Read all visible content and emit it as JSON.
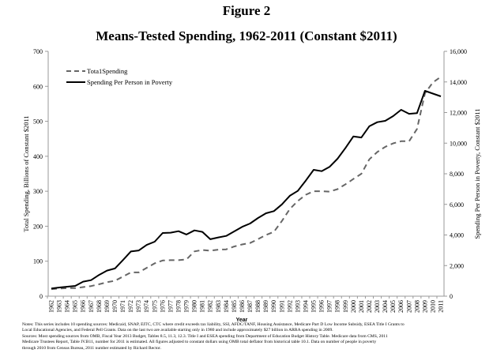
{
  "figure_label": "Figure 2",
  "chart_data": {
    "type": "line",
    "title": "Means-Tested Spending, 1962-2011 (Constant $2011)",
    "xlabel": "Year",
    "ylabel": "Total Spending, Billions of Constant $2011",
    "y2label": "Spending Per Person in Poverty, Constant $2011",
    "ylim": [
      0,
      700
    ],
    "y2lim": [
      0,
      16000
    ],
    "yticks": [
      "0",
      "100",
      "200",
      "300",
      "400",
      "500",
      "600",
      "700"
    ],
    "y2ticks": [
      "0",
      "2,000",
      "4,000",
      "6,000",
      "8,000",
      "10,000",
      "12,000",
      "14,000",
      "16,000"
    ],
    "grid": false,
    "legend_position": "top-left",
    "x": [
      "1962",
      "1963",
      "1964",
      "1965",
      "1966",
      "1967",
      "1968",
      "1969",
      "1970",
      "1971",
      "1972",
      "1973",
      "1974",
      "1975",
      "1976",
      "1977",
      "1978",
      "1979",
      "1980",
      "1981",
      "1982",
      "1983",
      "1984",
      "1985",
      "1986",
      "1987",
      "1988",
      "1989",
      "1990",
      "1991",
      "1992",
      "1993",
      "1994",
      "1995",
      "1996",
      "1997",
      "1998",
      "1999",
      "2000",
      "2001",
      "2002",
      "2003",
      "2004",
      "2005",
      "2006",
      "2007",
      "2008",
      "2009",
      "2010",
      "2011"
    ],
    "series": [
      {
        "name": "Total Spending",
        "legend_label": "Tota1Spending",
        "axis": "left",
        "style": "dashed",
        "color": "#666666",
        "values": [
          20,
          22,
          23,
          23,
          26,
          29,
          34,
          40,
          44,
          56,
          68,
          68,
          81,
          94,
          102,
          103,
          103,
          105,
          128,
          132,
          130,
          133,
          134,
          142,
          148,
          152,
          163,
          175,
          184,
          215,
          249,
          272,
          290,
          300,
          300,
          299,
          306,
          320,
          335,
          350,
          391,
          412,
          427,
          437,
          443,
          443,
          478,
          580,
          611,
          627
        ]
      },
      {
        "name": "Spending Per Person in Poverty",
        "legend_label": "Spending Per Person in Poverty",
        "axis": "right",
        "style": "solid",
        "color": "#000000",
        "values": [
          500,
          570,
          620,
          670,
          950,
          1050,
          1390,
          1670,
          1810,
          2360,
          2920,
          2990,
          3350,
          3560,
          4130,
          4150,
          4250,
          4030,
          4300,
          4200,
          3720,
          3840,
          3940,
          4230,
          4530,
          4750,
          5110,
          5420,
          5560,
          6000,
          6560,
          6880,
          7550,
          8260,
          8170,
          8450,
          8980,
          9690,
          10440,
          10370,
          11100,
          11370,
          11460,
          11770,
          12180,
          11920,
          11960,
          13420,
          13240,
          13060
        ]
      }
    ]
  },
  "notes": [
    "Notes: This series includes 10 spending sources: Medicaid, SNAP, EITC, CTC where credit exceeds tax liability, SSI, AFDC/TANF, Housing Assistance, Medicare Part D Low Income Subsidy, ESEA Title I Grants to",
    "Local Educational Agencies, and Federal Pell Grants. Data on the last two are available starting only in 1980 and include approximately $27 billion in ARRA spending in 2009.",
    "Sources: Most spending sources from OMB, Fiscal Year 2013 Budget, Tables 8.5, 11.3, 12.3. Title I and ESEA spending from Department of Education Budget History Table. Medicare data from CMS, 2011",
    "Medicare Trustees Report, Table IV.B11, number for 2011 is estimated. All figures adjusted to constant dollars using OMB total deflator from historical table 10.1. Data on number of people in poverty",
    "through 2010 from Census Bureau, 2011 number estimated by Richard Rector."
  ]
}
